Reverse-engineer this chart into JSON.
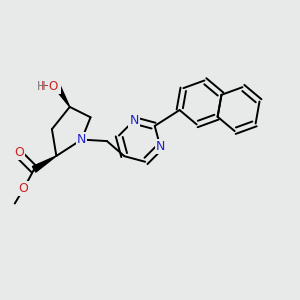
{
  "background_color": "#e8eaea",
  "bond_color": "#000000",
  "N_color": "#2222cc",
  "O_color": "#cc2222",
  "H_color": "#7a7a7a",
  "lw": 1.4,
  "figsize": [
    3.0,
    3.0
  ],
  "dpi": 100,
  "xlim": [
    0,
    10
  ],
  "ylim": [
    0,
    10
  ]
}
